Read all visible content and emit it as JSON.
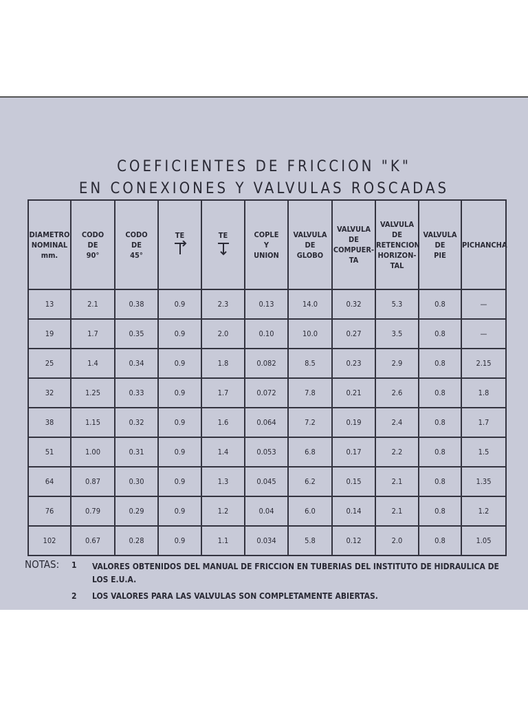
{
  "title": [
    "COEFICIENTES DE FRICCION \"K\"",
    "EN CONEXIONES Y VALVULAS ROSCADAS"
  ],
  "table": {
    "headers": [
      "DIAMETRO\nNOMINAL\nmm.",
      "CODO\nDE\n90°",
      "CODO\nDE\n45°",
      "TE",
      "TE",
      "COPLE\nY\nUNION",
      "VALVULA\nDE\nGLOBO",
      "VALVULA\nDE\nCOMPUER-\nTA",
      "VALVULA\nDE\nRETENCION\nHORIZON-\nTAL",
      "VALVULA\nDE\nPIE",
      "PICHANCHA"
    ],
    "rows": [
      [
        "13",
        "2.1",
        "0.38",
        "0.9",
        "2.3",
        "0.13",
        "14.0",
        "0.32",
        "5.3",
        "0.8",
        "—"
      ],
      [
        "19",
        "1.7",
        "0.35",
        "0.9",
        "2.0",
        "0.10",
        "10.0",
        "0.27",
        "3.5",
        "0.8",
        "—"
      ],
      [
        "25",
        "1.4",
        "0.34",
        "0.9",
        "1.8",
        "0.082",
        "8.5",
        "0.23",
        "2.9",
        "0.8",
        "2.15"
      ],
      [
        "32",
        "1.25",
        "0.33",
        "0.9",
        "1.7",
        "0.072",
        "7.8",
        "0.21",
        "2.6",
        "0.8",
        "1.8"
      ],
      [
        "38",
        "1.15",
        "0.32",
        "0.9",
        "1.6",
        "0.064",
        "7.2",
        "0.19",
        "2.4",
        "0.8",
        "1.7"
      ],
      [
        "51",
        "1.00",
        "0.31",
        "0.9",
        "1.4",
        "0.053",
        "6.8",
        "0.17",
        "2.2",
        "0.8",
        "1.5"
      ],
      [
        "64",
        "0.87",
        "0.30",
        "0.9",
        "1.3",
        "0.045",
        "6.2",
        "0.15",
        "2.1",
        "0.8",
        "1.35"
      ],
      [
        "76",
        "0.79",
        "0.29",
        "0.9",
        "1.2",
        "0.04",
        "6.0",
        "0.14",
        "2.1",
        "0.8",
        "1.2"
      ],
      [
        "102",
        "0.67",
        "0.28",
        "0.9",
        "1.1",
        "0.034",
        "5.8",
        "0.12",
        "2.0",
        "0.8",
        "1.05"
      ]
    ]
  },
  "notes": {
    "label": "NOTAS:",
    "items": [
      {
        "number": "1",
        "text": "VALORES OBTENIDOS DEL MANUAL DE FRICCION EN TUBERIAS DEL INSTITUTO DE HIDRAULICA DE LOS E.U.A."
      },
      {
        "number": "2",
        "text": "LOS VALORES PARA LAS VALVULAS SON COMPLETAMENTE ABIERTAS."
      }
    ]
  }
}
